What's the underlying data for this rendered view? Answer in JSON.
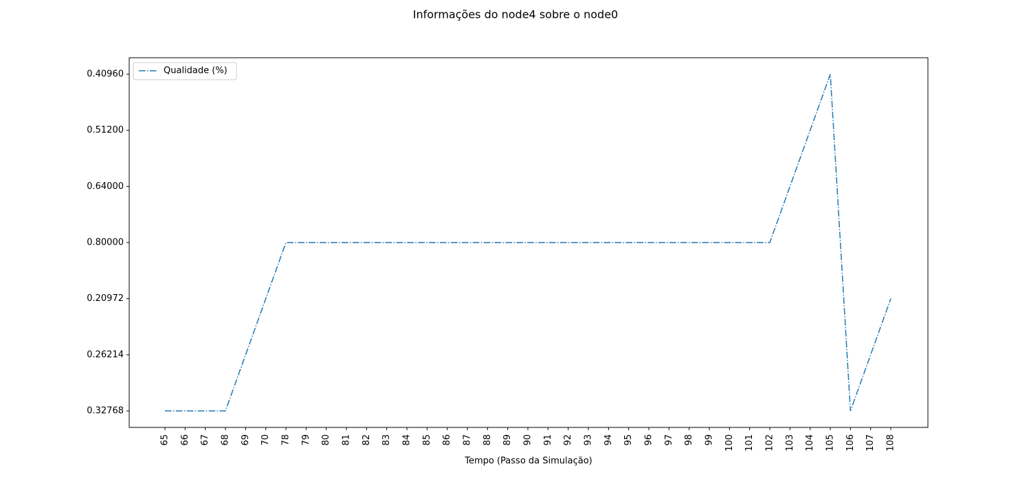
{
  "chart_data": {
    "type": "line",
    "title": "Informações do node4 sobre o node0",
    "x_label": "Tempo (Passo da Simulação)",
    "categories": [
      "65",
      "66",
      "67",
      "68",
      "69",
      "70",
      "78",
      "79",
      "80",
      "81",
      "82",
      "83",
      "84",
      "85",
      "86",
      "87",
      "88",
      "89",
      "90",
      "91",
      "92",
      "93",
      "94",
      "95",
      "96",
      "97",
      "98",
      "99",
      "100",
      "101",
      "102",
      "103",
      "104",
      "105",
      "106",
      "107",
      "108"
    ],
    "yticks": [
      {
        "value": 0.32768,
        "label": "0.32768"
      },
      {
        "value": 0.26214,
        "label": "0.26214"
      },
      {
        "value": 0.20972,
        "label": "0.20972"
      },
      {
        "value": 0.8,
        "label": "0.80000"
      },
      {
        "value": 0.64,
        "label": "0.64000"
      },
      {
        "value": 0.512,
        "label": "0.51200"
      },
      {
        "value": 0.4096,
        "label": "0.40960"
      }
    ],
    "series": [
      {
        "name": "Qualidade (%)",
        "color": "#1f77b4",
        "line_style": "dashdot",
        "values": [
          0.32768,
          0.32768,
          0.32768,
          0.32768,
          0.26214,
          0.20972,
          0.8,
          0.8,
          0.8,
          0.8,
          0.8,
          0.8,
          0.8,
          0.8,
          0.8,
          0.8,
          0.8,
          0.8,
          0.8,
          0.8,
          0.8,
          0.8,
          0.8,
          0.8,
          0.8,
          0.8,
          0.8,
          0.8,
          0.8,
          0.8,
          0.8,
          0.64,
          0.512,
          0.4096,
          0.32768,
          0.26214,
          0.20972
        ]
      }
    ],
    "legend": "upper left"
  }
}
